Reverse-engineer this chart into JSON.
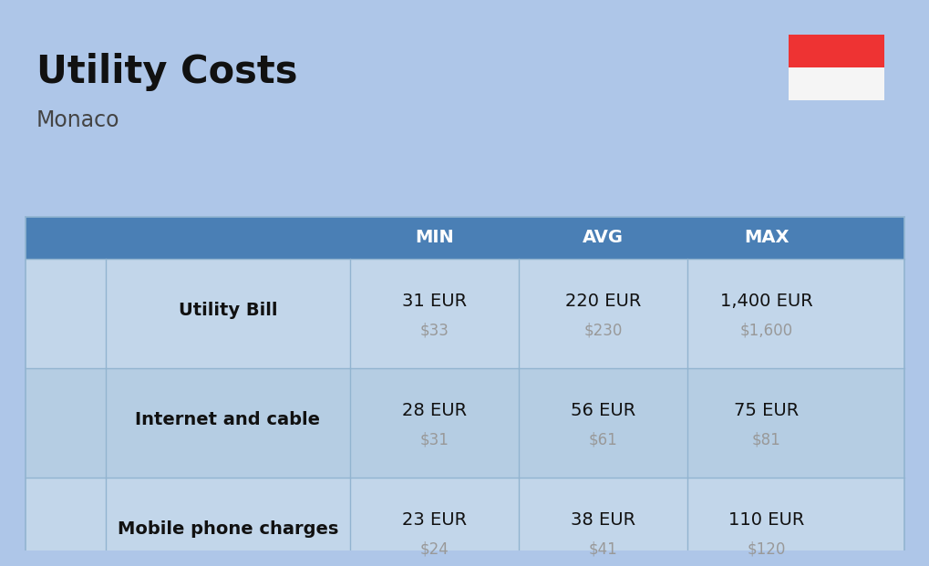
{
  "title": "Utility Costs",
  "subtitle": "Monaco",
  "background_color": "#aec6e8",
  "header_color": "#4a7fb5",
  "row_color_odd": "#c2d6ea",
  "row_color_even": "#b5cde3",
  "header_text_color": "#ffffff",
  "cell_text_color": "#111111",
  "usd_text_color": "#999999",
  "label_text_color": "#111111",
  "title_color": "#111111",
  "subtitle_color": "#444444",
  "flag_top_color": "#ee3333",
  "flag_bottom_color": "#f5f5f5",
  "divider_color": "#92b4d0",
  "columns": [
    "MIN",
    "AVG",
    "MAX"
  ],
  "rows": [
    {
      "label": "Utility Bill",
      "min_eur": "31 EUR",
      "min_usd": "$33",
      "avg_eur": "220 EUR",
      "avg_usd": "$230",
      "max_eur": "1,400 EUR",
      "max_usd": "$1,600"
    },
    {
      "label": "Internet and cable",
      "min_eur": "28 EUR",
      "min_usd": "$31",
      "avg_eur": "56 EUR",
      "avg_usd": "$61",
      "max_eur": "75 EUR",
      "max_usd": "$81"
    },
    {
      "label": "Mobile phone charges",
      "min_eur": "23 EUR",
      "min_usd": "$24",
      "avg_eur": "38 EUR",
      "avg_usd": "$41",
      "max_eur": "110 EUR",
      "max_usd": "$120"
    }
  ]
}
